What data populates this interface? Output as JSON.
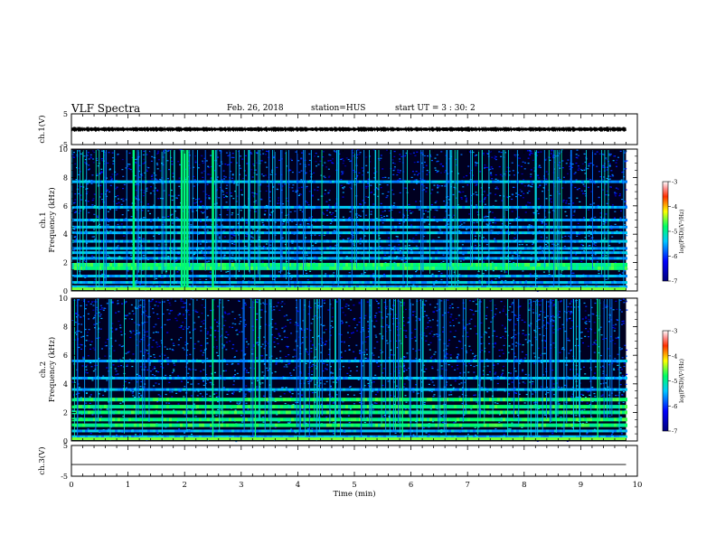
{
  "header": {
    "title": "VLF Spectra",
    "date": "Feb. 26, 2018",
    "station": "station=HUS",
    "start": "start  UT =  3 : 30: 2"
  },
  "chart_data": [
    {
      "type": "line",
      "panel": "ch1-waveform",
      "ylabel": "ch.1(V)",
      "ylim": [
        -5,
        5
      ],
      "yticks": [
        "5",
        "-5"
      ],
      "xlim": [
        0,
        10
      ],
      "series": [
        {
          "values_description_constant": 0,
          "x": [
            0,
            9.8
          ],
          "y": [
            0,
            0
          ]
        }
      ]
    },
    {
      "type": "heatmap",
      "panel": "ch1-spectrogram",
      "ylabel": "ch.1\nFrequency (kHz)",
      "ylim": [
        0,
        10
      ],
      "yticks": [
        "0",
        "2",
        "4",
        "6",
        "8",
        "10"
      ],
      "xlim": [
        0,
        10
      ],
      "data_end_min": 9.8,
      "colorbar": {
        "label": "log(PSD)(V²/Hz)",
        "range": [
          -7,
          -3
        ],
        "ticks": [
          "-3",
          "-4",
          "-5",
          "-6",
          "-7"
        ]
      },
      "bands_khz": [
        0.3,
        0.6,
        1.05,
        1.6,
        1.85,
        2.3,
        2.7,
        3.0,
        3.5,
        4.1,
        4.5,
        5.0,
        5.9,
        7.7
      ],
      "strong_bursts_min": [
        1.1,
        1.95,
        2.0,
        2.05,
        2.5
      ]
    },
    {
      "type": "heatmap",
      "panel": "ch2-spectrogram",
      "ylabel": "ch.2\nFrequency (kHz)",
      "ylim": [
        0,
        10
      ],
      "yticks": [
        "0",
        "2",
        "4",
        "6",
        "8",
        "10"
      ],
      "xlim": [
        0,
        10
      ],
      "data_end_min": 9.8,
      "colorbar": {
        "label": "log(PSD)(V²/Hz)",
        "range": [
          -7,
          -3
        ],
        "ticks": [
          "-3",
          "-4",
          "-5",
          "-6",
          "-7"
        ]
      },
      "bands_khz": [
        0.3,
        0.7,
        1.1,
        1.5,
        2.0,
        2.4,
        2.9,
        3.6,
        4.4,
        5.6
      ],
      "strong_bursts_min": [
        2.5,
        3.25,
        5.85,
        9.3
      ]
    },
    {
      "type": "line",
      "panel": "ch3-waveform",
      "ylabel": "ch.3(V)",
      "ylim": [
        -5,
        5
      ],
      "yticks": [
        "5",
        "-5"
      ],
      "xlim": [
        0,
        10
      ],
      "xticks": [
        "0",
        "1",
        "2",
        "3",
        "4",
        "5",
        "6",
        "7",
        "8",
        "9",
        "10"
      ],
      "xlabel": "Time  (min)",
      "series": [
        {
          "x": [
            0,
            9.8
          ],
          "y": [
            -1.2,
            -1.2
          ]
        }
      ]
    }
  ]
}
